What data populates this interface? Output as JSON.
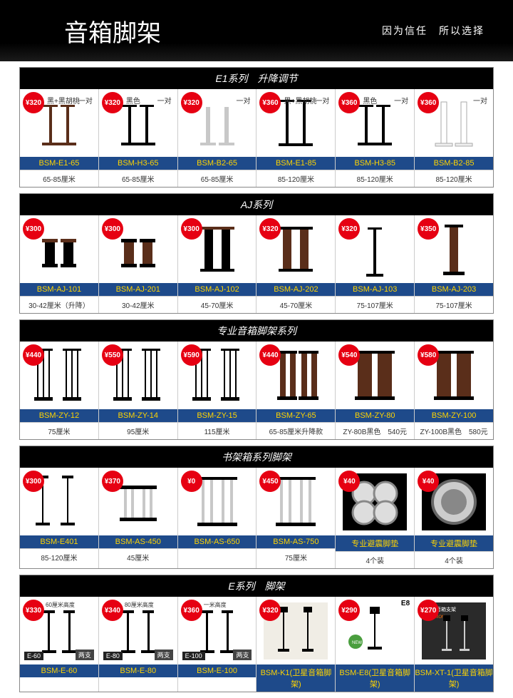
{
  "header": {
    "title": "音箱脚架",
    "slogan": "因为信任　所以选择"
  },
  "sections": [
    {
      "title": "E1系列　升降调节",
      "cells": [
        {
          "price": "¥320",
          "model": "BSM-E1-65",
          "spec": "65-85厘米",
          "tag1": "黑+黑胡桃",
          "tag2": "一对",
          "svg": "e1a"
        },
        {
          "price": "¥320",
          "model": "BSM-H3-65",
          "spec": "65-85厘米",
          "tag1": "黑色",
          "tag2": "一对",
          "svg": "e1b"
        },
        {
          "price": "¥320",
          "model": "BSM-B2-65",
          "spec": "65-85厘米",
          "tag2": "一对",
          "svg": "e1c"
        },
        {
          "price": "¥360",
          "model": "BSM-E1-85",
          "spec": "85-120厘米",
          "tag1": "黑+黑胡桃",
          "tag2": "一对",
          "svg": "e1d"
        },
        {
          "price": "¥360",
          "model": "BSM-H3-85",
          "spec": "85-120厘米",
          "tag1": "黑色",
          "tag2": "一对",
          "svg": "e1b"
        },
        {
          "price": "¥360",
          "model": "BSM-B2-85",
          "spec": "85-120厘米",
          "tag2": "一对",
          "svg": "e1e"
        }
      ]
    },
    {
      "title": "AJ系列",
      "cells": [
        {
          "price": "¥300",
          "model": "BSM-AJ-101",
          "spec": "30-42厘米（升降）",
          "svg": "aj1"
        },
        {
          "price": "¥300",
          "model": "BSM-AJ-201",
          "spec": "30-42厘米",
          "svg": "aj2"
        },
        {
          "price": "¥300",
          "model": "BSM-AJ-102",
          "spec": "45-70厘米",
          "svg": "aj3"
        },
        {
          "price": "¥320",
          "model": "BSM-AJ-202",
          "spec": "45-70厘米",
          "svg": "aj4"
        },
        {
          "price": "¥320",
          "model": "BSM-AJ-103",
          "spec": "75-107厘米",
          "svg": "aj5"
        },
        {
          "price": "¥350",
          "model": "BSM-AJ-203",
          "spec": "75-107厘米",
          "svg": "aj6"
        }
      ]
    },
    {
      "title": "专业音箱脚架系列",
      "cells": [
        {
          "price": "¥440",
          "model": "BSM-ZY-12",
          "spec": "75厘米",
          "svg": "zy1"
        },
        {
          "price": "¥550",
          "model": "BSM-ZY-14",
          "spec": "95厘米",
          "svg": "zy1"
        },
        {
          "price": "¥590",
          "model": "BSM-ZY-15",
          "spec": "115厘米",
          "svg": "zy1"
        },
        {
          "price": "¥440",
          "model": "BSM-ZY-65",
          "spec": "65-85厘米升降款",
          "svg": "zy2"
        },
        {
          "price": "¥540",
          "model": "BSM-ZY-80",
          "spec": "ZY-80B黑色　540元",
          "svg": "zy3"
        },
        {
          "price": "¥580",
          "model": "BSM-ZY-100",
          "spec": "ZY-100B黑色　580元",
          "svg": "zy3"
        }
      ]
    },
    {
      "title": "书架箱系列脚架",
      "cells": [
        {
          "price": "¥300",
          "model": "BSM-E401",
          "spec": "85-120厘米",
          "svg": "sj1"
        },
        {
          "price": "¥370",
          "model": "BSM-AS-450",
          "spec": "45厘米",
          "svg": "sj2"
        },
        {
          "price": "¥0",
          "model": "BSM-AS-650",
          "spec": "",
          "svg": "sj3"
        },
        {
          "price": "¥450",
          "model": "BSM-AS-750",
          "spec": "75厘米",
          "svg": "sj3"
        },
        {
          "price": "¥40",
          "model": "专业避震脚垫",
          "spec": "4个装",
          "svg": "pad1"
        },
        {
          "price": "¥40",
          "model": "专业避震脚垫",
          "spec": "4个装",
          "svg": "pad2"
        }
      ]
    },
    {
      "title": "E系列　脚架",
      "cells": [
        {
          "price": "¥330",
          "model": "BSM-E-60",
          "elabel": "E-60",
          "epair": "两支",
          "tag3": "60厘米高度",
          "svg": "es1"
        },
        {
          "price": "¥340",
          "model": "BSM-E-80",
          "elabel": "E-80",
          "epair": "两支",
          "tag3": "80厘米高度",
          "svg": "es1"
        },
        {
          "price": "¥360",
          "model": "BSM-E-100",
          "elabel": "E-100",
          "epair": "两支",
          "tag3": "一米高度",
          "svg": "es1"
        },
        {
          "price": "¥320",
          "model": "BSM-K1(卫星音箱脚架)",
          "svg": "es2"
        },
        {
          "price": "¥290",
          "model": "BSM-E8(卫星音箱脚架)",
          "svg": "es3",
          "tag4": "E8"
        },
        {
          "price": "¥270",
          "model": "BSM-XT-1(卫星音箱脚架)",
          "svg": "es4"
        }
      ]
    }
  ],
  "colors": {
    "red": "#e60012",
    "blue": "#1e4a8a",
    "yellow": "#ffd400",
    "black": "#000",
    "walnut": "#5a2e1a",
    "gray": "#888",
    "silver": "#c8c8c8"
  }
}
